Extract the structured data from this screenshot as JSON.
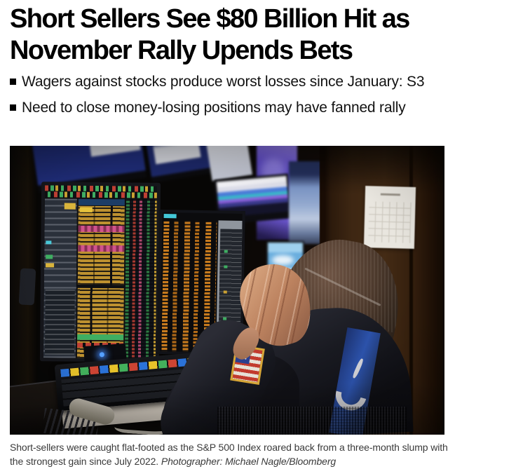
{
  "article": {
    "headline": "Short Sellers See $80 Billion Hit as November Rally Upends Bets",
    "bullets": [
      "Wagers against stocks produce worst losses since January: S3",
      "Need to close money-losing positions may have fanned rally"
    ],
    "caption_text": "Short-sellers were caught flat-footed as the S&P 500 Index roared back from a three-month slump with the strongest gain since July 2022. ",
    "caption_credit": "Photographer: Michael Nagle/Bloomberg"
  },
  "photo": {
    "description": "Trader at a stock-exchange desk covering his face with his hand, surrounded by Bloomberg terminal monitors, a trading keyboard, a phone handset, an American flag patch on his sleeve, and a wall calendar on a wooden door"
  },
  "colors": {
    "page_bg": "#ffffff",
    "headline_text": "#000000",
    "bullet_text": "#121212",
    "caption_text": "#3a3a3a",
    "terminal_amber": "#bd9130",
    "terminal_pink": "#d0538c",
    "terminal_green": "#3fae62",
    "terminal_red": "#c04034",
    "terminal_blue_header": "#1c3d66",
    "monitor_blue": "#202e7c",
    "sky_blue": "#6aaede",
    "door_brown": "#3e2713",
    "calendar_paper": "#e9e6df",
    "flag_gold": "#d8a637",
    "flag_red": "#c23b2e",
    "flag_canton": "#2a3f8f",
    "jacket_dark": "#191a21",
    "logo_blue": "#2c52aa",
    "skin": "#bc825f",
    "hair_brown": "#4c392c",
    "key_blue": "#2b72d8",
    "key_yellow": "#e8c32a",
    "key_green": "#43b05c",
    "key_red": "#cc4433",
    "led_blue": "#55a0ff"
  }
}
